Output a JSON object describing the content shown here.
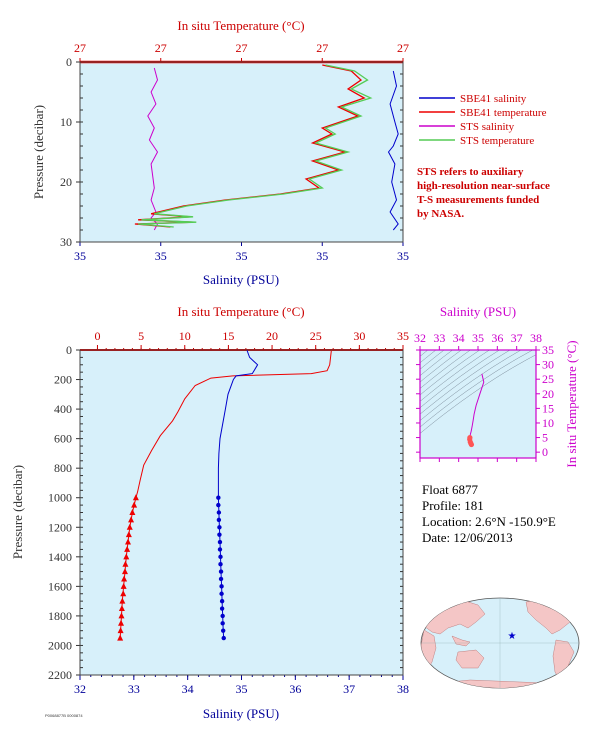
{
  "colors": {
    "plot_bg": "#d7f0fa",
    "salinity": "#0000cc",
    "temperature": "#ee0000",
    "sts_salinity": "#cc00cc",
    "sts_temperature": "#55cc55",
    "axis_temp": "#cc0000",
    "axis_sal": "#000099",
    "axis_press": "#333333",
    "ts_axis": "#cc00cc"
  },
  "float_info": {
    "float": "Float  6877",
    "profile": "Profile:  181",
    "location": "Location:  2.6°N  -150.9°E",
    "date": "Date:  12/06/2013"
  },
  "footer_code": "P0068877B 0000874",
  "chart_data": [
    {
      "id": "near-surface",
      "type": "line",
      "xlabel_top": "In situ Temperature (°C)",
      "xlabel_bottom": "Salinity (PSU)",
      "ylabel": "Pressure (decibar)",
      "top_ticks": [
        "27",
        "27",
        "27",
        "27",
        "27"
      ],
      "bottom_ticks": [
        "35",
        "35",
        "35",
        "35",
        "35"
      ],
      "y_ticks": [
        0,
        10,
        20,
        30
      ],
      "ylim": [
        0,
        30
      ],
      "legend": [
        {
          "name": "SBE41 salinity",
          "color": "#0000cc"
        },
        {
          "name": "SBE41 temperature",
          "color": "#ee0000"
        },
        {
          "name": "STS salinity",
          "color": "#cc00cc"
        },
        {
          "name": "STS temperature",
          "color": "#55cc55"
        }
      ],
      "note": [
        "STS refers to auxiliary",
        "high-resolution near-surface",
        "T-S measurements funded",
        "by NASA."
      ],
      "series": [
        {
          "name": "SBE41 salinity",
          "frac": [
            [
              0.97,
              1.5
            ],
            [
              0.98,
              4
            ],
            [
              0.96,
              7
            ],
            [
              0.975,
              10
            ],
            [
              0.985,
              12
            ],
            [
              0.97,
              14
            ],
            [
              0.955,
              15
            ],
            [
              0.975,
              17
            ],
            [
              0.965,
              20
            ],
            [
              0.98,
              23
            ],
            [
              0.96,
              25
            ],
            [
              0.985,
              27
            ],
            [
              0.97,
              28
            ]
          ]
        },
        {
          "name": "STS salinity",
          "frac": [
            [
              0.23,
              1
            ],
            [
              0.24,
              3
            ],
            [
              0.22,
              5
            ],
            [
              0.235,
              7
            ],
            [
              0.21,
              9
            ],
            [
              0.23,
              11
            ],
            [
              0.215,
              13
            ],
            [
              0.24,
              15
            ],
            [
              0.22,
              17
            ],
            [
              0.225,
              19
            ],
            [
              0.23,
              21
            ],
            [
              0.22,
              23
            ],
            [
              0.235,
              25
            ],
            [
              0.22,
              26
            ],
            [
              0.24,
              27
            ],
            [
              0.23,
              28
            ]
          ]
        },
        {
          "name": "SBE41 temperature",
          "frac": [
            [
              0.75,
              0.5
            ],
            [
              0.84,
              1.5
            ],
            [
              0.87,
              3
            ],
            [
              0.83,
              4.5
            ],
            [
              0.88,
              6
            ],
            [
              0.8,
              7.5
            ],
            [
              0.86,
              9
            ],
            [
              0.75,
              11
            ],
            [
              0.78,
              12
            ],
            [
              0.72,
              13.5
            ],
            [
              0.82,
              15
            ],
            [
              0.72,
              16.5
            ],
            [
              0.8,
              18
            ],
            [
              0.7,
              19.5
            ],
            [
              0.74,
              21
            ],
            [
              0.62,
              22
            ],
            [
              0.45,
              23
            ],
            [
              0.32,
              24
            ],
            [
              0.22,
              25.3
            ],
            [
              0.34,
              25.8
            ],
            [
              0.18,
              26.3
            ],
            [
              0.35,
              26.7
            ],
            [
              0.17,
              27
            ],
            [
              0.28,
              27.5
            ]
          ]
        },
        {
          "name": "STS temperature",
          "frac": [
            [
              0.76,
              0.5
            ],
            [
              0.85,
              1.5
            ],
            [
              0.89,
              3
            ],
            [
              0.84,
              4.5
            ],
            [
              0.9,
              6
            ],
            [
              0.81,
              7.5
            ],
            [
              0.87,
              9
            ],
            [
              0.76,
              11
            ],
            [
              0.79,
              12
            ],
            [
              0.73,
              13.5
            ],
            [
              0.83,
              15
            ],
            [
              0.73,
              16.5
            ],
            [
              0.81,
              18
            ],
            [
              0.71,
              19.5
            ],
            [
              0.75,
              21
            ],
            [
              0.63,
              22
            ],
            [
              0.46,
              23
            ],
            [
              0.33,
              24
            ],
            [
              0.23,
              25.3
            ],
            [
              0.35,
              25.8
            ],
            [
              0.19,
              26.3
            ],
            [
              0.36,
              26.7
            ],
            [
              0.18,
              27
            ],
            [
              0.29,
              27.5
            ]
          ]
        }
      ]
    },
    {
      "id": "full-profile",
      "type": "line",
      "xlabel_top": "In situ Temperature (°C)",
      "xlabel_bottom": "Salinity (PSU)",
      "ylabel": "Pressure (decibar)",
      "temp_ticks": [
        0,
        5,
        10,
        15,
        20,
        25,
        30,
        35
      ],
      "sal_ticks": [
        32,
        33,
        34,
        35,
        36,
        37,
        38
      ],
      "y_ticks": [
        0,
        200,
        400,
        600,
        800,
        1000,
        1200,
        1400,
        1600,
        1800,
        2000,
        2200
      ],
      "temp_lim": [
        -2,
        35
      ],
      "sal_lim": [
        32,
        38
      ],
      "ylim": [
        0,
        2200
      ],
      "temperature": [
        [
          26.8,
          0
        ],
        [
          26.6,
          100
        ],
        [
          26.3,
          140
        ],
        [
          24.5,
          160
        ],
        [
          15.5,
          175
        ],
        [
          13.0,
          190
        ],
        [
          11.2,
          240
        ],
        [
          10.0,
          330
        ],
        [
          9.2,
          420
        ],
        [
          8.6,
          480
        ],
        [
          7.2,
          580
        ],
        [
          6.2,
          680
        ],
        [
          5.3,
          780
        ],
        [
          4.9,
          880
        ],
        [
          4.6,
          960
        ],
        [
          4.4,
          1000
        ],
        [
          4.0,
          1100
        ],
        [
          3.7,
          1200
        ],
        [
          3.5,
          1300
        ],
        [
          3.3,
          1400
        ],
        [
          3.15,
          1500
        ],
        [
          3.0,
          1600
        ],
        [
          2.85,
          1700
        ],
        [
          2.75,
          1800
        ],
        [
          2.65,
          1900
        ],
        [
          2.6,
          1950
        ]
      ],
      "temperature_markers": [
        [
          4.4,
          1000
        ],
        [
          4.2,
          1050
        ],
        [
          4.0,
          1100
        ],
        [
          3.85,
          1150
        ],
        [
          3.7,
          1200
        ],
        [
          3.6,
          1250
        ],
        [
          3.5,
          1300
        ],
        [
          3.4,
          1350
        ],
        [
          3.3,
          1400
        ],
        [
          3.2,
          1450
        ],
        [
          3.15,
          1500
        ],
        [
          3.05,
          1550
        ],
        [
          3.0,
          1600
        ],
        [
          2.95,
          1650
        ],
        [
          2.85,
          1700
        ],
        [
          2.8,
          1750
        ],
        [
          2.75,
          1800
        ],
        [
          2.7,
          1850
        ],
        [
          2.65,
          1900
        ],
        [
          2.6,
          1950
        ]
      ],
      "salinity": [
        [
          35.1,
          0
        ],
        [
          35.15,
          50
        ],
        [
          35.3,
          100
        ],
        [
          35.2,
          160
        ],
        [
          34.9,
          175
        ],
        [
          34.85,
          200
        ],
        [
          34.75,
          300
        ],
        [
          34.7,
          400
        ],
        [
          34.65,
          500
        ],
        [
          34.6,
          600
        ],
        [
          34.58,
          700
        ],
        [
          34.57,
          800
        ],
        [
          34.57,
          900
        ],
        [
          34.57,
          1000
        ],
        [
          34.58,
          1100
        ],
        [
          34.59,
          1200
        ],
        [
          34.6,
          1300
        ],
        [
          34.61,
          1400
        ],
        [
          34.62,
          1500
        ],
        [
          34.63,
          1600
        ],
        [
          34.64,
          1700
        ],
        [
          34.65,
          1800
        ],
        [
          34.66,
          1900
        ],
        [
          34.67,
          1950
        ]
      ],
      "salinity_markers": [
        [
          34.57,
          1000
        ],
        [
          34.57,
          1050
        ],
        [
          34.58,
          1100
        ],
        [
          34.58,
          1150
        ],
        [
          34.59,
          1200
        ],
        [
          34.59,
          1250
        ],
        [
          34.6,
          1300
        ],
        [
          34.6,
          1350
        ],
        [
          34.61,
          1400
        ],
        [
          34.61,
          1450
        ],
        [
          34.62,
          1500
        ],
        [
          34.62,
          1550
        ],
        [
          34.63,
          1600
        ],
        [
          34.63,
          1650
        ],
        [
          34.64,
          1700
        ],
        [
          34.64,
          1750
        ],
        [
          34.65,
          1800
        ],
        [
          34.65,
          1850
        ],
        [
          34.66,
          1900
        ],
        [
          34.67,
          1950
        ]
      ]
    },
    {
      "id": "ts-diagram",
      "type": "scatter",
      "xlabel_top": "Salinity (PSU)",
      "ylabel_right": "In situ Temperature (°C)",
      "sal_ticks": [
        32,
        33,
        34,
        35,
        36,
        37,
        38
      ],
      "temp_ticks": [
        0,
        5,
        10,
        15,
        20,
        25,
        30,
        35
      ],
      "sal_lim": [
        32,
        38
      ],
      "temp_lim": [
        -2,
        35
      ],
      "ts_points": [
        [
          35.2,
          26.8
        ],
        [
          35.3,
          24
        ],
        [
          35.1,
          20
        ],
        [
          34.9,
          16
        ],
        [
          34.8,
          13
        ],
        [
          34.75,
          11
        ],
        [
          34.7,
          9
        ],
        [
          34.65,
          7.2
        ],
        [
          34.6,
          6
        ],
        [
          34.58,
          5
        ],
        [
          34.57,
          4.4
        ],
        [
          34.6,
          3.5
        ],
        [
          34.63,
          3.0
        ],
        [
          34.66,
          2.6
        ]
      ]
    },
    {
      "id": "location-map",
      "type": "scatter",
      "float_position": {
        "lat": 2.6,
        "lon": -150.9
      }
    }
  ]
}
